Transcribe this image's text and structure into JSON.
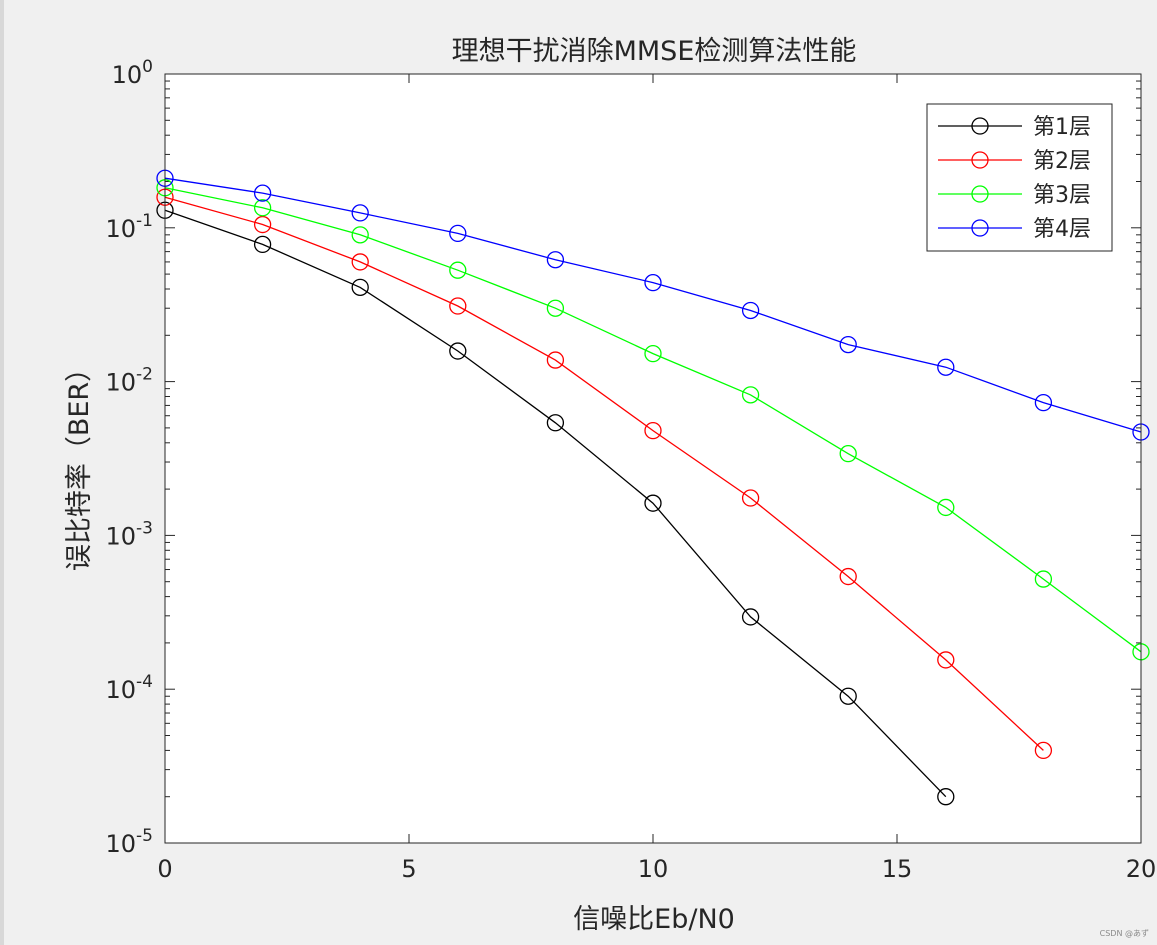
{
  "chart_data": {
    "type": "line",
    "title": "理想干扰消除MMSE检测算法性能",
    "xlabel": "信噪比Eb/N0",
    "ylabel": "误比特率（BER）",
    "xlim": [
      0,
      20
    ],
    "ylim": [
      1e-05,
      1
    ],
    "yscale": "log",
    "grid": false,
    "legend_location": "top-right",
    "x_ticks": [
      0,
      5,
      10,
      15,
      20
    ],
    "y_tick_exponents": [
      0,
      -1,
      -2,
      -3,
      -4,
      -5
    ],
    "marker": "circle",
    "series": [
      {
        "name": "第1层",
        "color": "#000000",
        "x": [
          0,
          2,
          4,
          6,
          8,
          10,
          12,
          14,
          16
        ],
        "y": [
          0.13,
          0.078,
          0.041,
          0.0158,
          0.0054,
          0.00162,
          0.000295,
          9e-05,
          2e-05
        ]
      },
      {
        "name": "第2层",
        "color": "#ff0000",
        "x": [
          0,
          2,
          4,
          6,
          8,
          10,
          12,
          14,
          16,
          18
        ],
        "y": [
          0.158,
          0.105,
          0.06,
          0.031,
          0.0138,
          0.0048,
          0.00175,
          0.00054,
          0.000155,
          4e-05
        ]
      },
      {
        "name": "第3层",
        "color": "#00ff00",
        "x": [
          0,
          2,
          4,
          6,
          8,
          10,
          12,
          14,
          16,
          18,
          20
        ],
        "y": [
          0.182,
          0.135,
          0.09,
          0.053,
          0.03,
          0.0152,
          0.0082,
          0.0034,
          0.00152,
          0.00052,
          0.000175
        ]
      },
      {
        "name": "第4层",
        "color": "#0000ff",
        "x": [
          0,
          2,
          4,
          6,
          8,
          10,
          12,
          14,
          16,
          18,
          20
        ],
        "y": [
          0.21,
          0.168,
          0.125,
          0.092,
          0.062,
          0.044,
          0.029,
          0.0174,
          0.0124,
          0.0073,
          0.0047
        ]
      }
    ]
  },
  "watermark": "CSDN @あず"
}
